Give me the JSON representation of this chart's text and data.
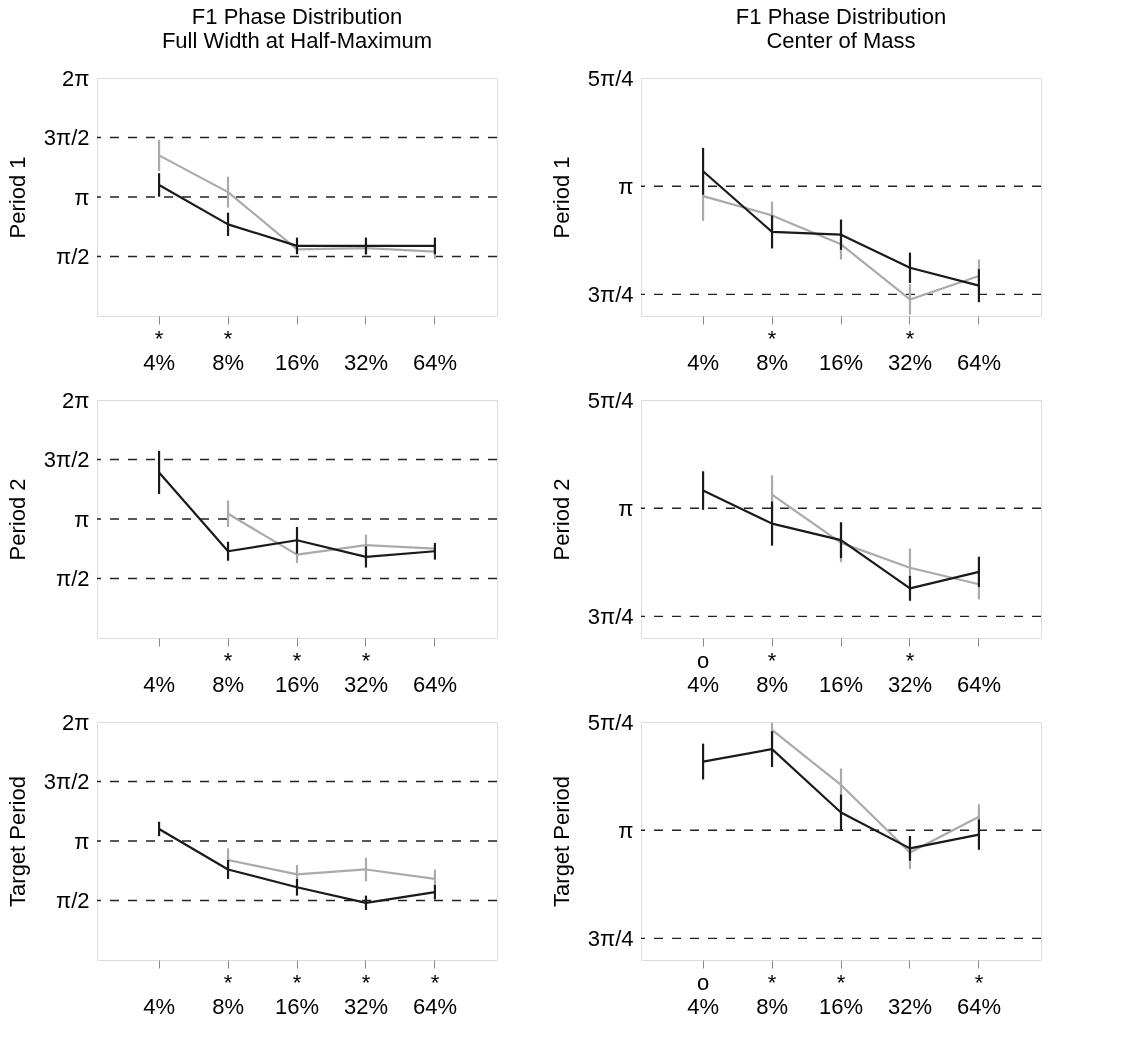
{
  "chart_data": [
    {
      "type": "line",
      "title": "F1 Phase Distribution\nFull Width at Half-Maximum",
      "ylabel": "Period 1",
      "categories": [
        "*\n4%",
        "*\n8%",
        "16%",
        "32%",
        "64%"
      ],
      "series": [
        {
          "color": "#1a1a1a",
          "values": [
            3.46,
            2.42,
            1.85,
            1.85,
            1.85
          ],
          "errors": [
            0.31,
            0.31,
            0.22,
            0.22,
            0.22
          ]
        },
        {
          "color": "#aaaaaa",
          "values": [
            4.24,
            3.27,
            1.76,
            1.79,
            1.7
          ],
          "errors": [
            0.41,
            0.41,
            0.09,
            0.19,
            0.19
          ]
        }
      ],
      "ylim": [
        0,
        6.2832
      ],
      "yticks": [
        {
          "value": 1.5708,
          "label": "π/2"
        },
        {
          "value": 3.1416,
          "label": "π"
        },
        {
          "value": 4.7124,
          "label": "3π/2"
        },
        {
          "value": 6.2832,
          "label": "2π"
        }
      ],
      "ref_lines": [
        {
          "axis": "y",
          "value": 1.5708,
          "line_style": "dashed"
        },
        {
          "axis": "y",
          "value": 3.1416,
          "line_style": "dashed"
        },
        {
          "axis": "y",
          "value": 4.7124,
          "line_style": "dashed"
        }
      ]
    },
    {
      "type": "line",
      "title": "F1 Phase Distribution\nCenter of Mass",
      "ylabel": "Period 1",
      "categories": [
        "4%",
        "*\n8%",
        "16%",
        "*\n32%",
        "64%"
      ],
      "series": [
        {
          "color": "#1a1a1a",
          "values": [
            3.25,
            2.81,
            2.79,
            2.55,
            2.42
          ],
          "errors": [
            0.17,
            0.12,
            0.11,
            0.11,
            0.12
          ]
        },
        {
          "color": "#aaaaaa",
          "values": [
            3.07,
            2.93,
            2.72,
            2.32,
            2.49
          ],
          "errors": [
            0.18,
            0.1,
            0.11,
            0.11,
            0.12
          ]
        }
      ],
      "ylim": [
        2.2,
        3.927
      ],
      "yticks": [
        {
          "value": 2.3562,
          "label": "3π/4"
        },
        {
          "value": 3.1416,
          "label": "π"
        },
        {
          "value": 3.927,
          "label": "5π/4"
        }
      ],
      "ref_lines": [
        {
          "axis": "y",
          "value": 2.3562,
          "line_style": "dashed"
        },
        {
          "axis": "y",
          "value": 3.1416,
          "line_style": "dashed"
        }
      ]
    },
    {
      "type": "line",
      "ylabel": "Period 2",
      "categories": [
        "4%",
        "*\n8%",
        "*\n16%",
        "*\n32%",
        "64%"
      ],
      "series": [
        {
          "color": "#1a1a1a",
          "values": [
            4.37,
            2.29,
            2.58,
            2.14,
            2.29
          ],
          "errors": [
            0.57,
            0.25,
            0.35,
            0.28,
            0.22
          ]
        },
        {
          "color": "#aaaaaa",
          "values": [
            null,
            3.28,
            2.2,
            2.45,
            2.36
          ],
          "errors": [
            null,
            0.35,
            0.22,
            0.28,
            0.09
          ]
        }
      ],
      "ylim": [
        0,
        6.2832
      ],
      "yticks": [
        {
          "value": 1.5708,
          "label": "π/2"
        },
        {
          "value": 3.1416,
          "label": "π"
        },
        {
          "value": 4.7124,
          "label": "3π/2"
        },
        {
          "value": 6.2832,
          "label": "2π"
        }
      ],
      "ref_lines": [
        {
          "axis": "y",
          "value": 1.5708,
          "line_style": "dashed"
        },
        {
          "axis": "y",
          "value": 3.1416,
          "line_style": "dashed"
        },
        {
          "axis": "y",
          "value": 4.7124,
          "line_style": "dashed"
        }
      ]
    },
    {
      "type": "line",
      "ylabel": "Period 2",
      "categories": [
        "o\n4%",
        "*\n8%",
        "16%",
        "*\n32%",
        "64%"
      ],
      "series": [
        {
          "color": "#1a1a1a",
          "values": [
            3.27,
            3.03,
            2.91,
            2.56,
            2.68
          ],
          "errors": [
            0.14,
            0.16,
            0.13,
            0.09,
            0.11
          ]
        },
        {
          "color": "#aaaaaa",
          "values": [
            null,
            3.24,
            2.89,
            2.71,
            2.59
          ],
          "errors": [
            null,
            0.14,
            0.14,
            0.14,
            0.11
          ]
        }
      ],
      "ylim": [
        2.2,
        3.927
      ],
      "yticks": [
        {
          "value": 2.3562,
          "label": "3π/4"
        },
        {
          "value": 3.1416,
          "label": "π"
        },
        {
          "value": 3.927,
          "label": "5π/4"
        }
      ],
      "ref_lines": [
        {
          "axis": "y",
          "value": 2.3562,
          "line_style": "dashed"
        },
        {
          "axis": "y",
          "value": 3.1416,
          "line_style": "dashed"
        }
      ]
    },
    {
      "type": "line",
      "ylabel": "Target Period",
      "categories": [
        "4%",
        "*\n8%",
        "*\n16%",
        "*\n32%",
        "*\n64%"
      ],
      "series": [
        {
          "color": "#1a1a1a",
          "values": [
            3.46,
            2.39,
            1.92,
            1.51,
            1.79
          ],
          "errors": [
            0.19,
            0.25,
            0.22,
            0.19,
            0.19
          ]
        },
        {
          "color": "#aaaaaa",
          "values": [
            null,
            2.64,
            2.26,
            2.39,
            2.14
          ],
          "errors": [
            null,
            0.31,
            0.25,
            0.31,
            0.25
          ]
        }
      ],
      "ylim": [
        0,
        6.2832
      ],
      "yticks": [
        {
          "value": 1.5708,
          "label": "π/2"
        },
        {
          "value": 3.1416,
          "label": "π"
        },
        {
          "value": 4.7124,
          "label": "3π/2"
        },
        {
          "value": 6.2832,
          "label": "2π"
        }
      ],
      "ref_lines": [
        {
          "axis": "y",
          "value": 1.5708,
          "line_style": "dashed"
        },
        {
          "axis": "y",
          "value": 3.1416,
          "line_style": "dashed"
        },
        {
          "axis": "y",
          "value": 4.7124,
          "line_style": "dashed"
        }
      ]
    },
    {
      "type": "line",
      "ylabel": "Target Period",
      "categories": [
        "o\n4%",
        "*\n8%",
        "*\n16%",
        "32%",
        "*\n64%"
      ],
      "series": [
        {
          "color": "#1a1a1a",
          "values": [
            3.64,
            3.73,
            3.27,
            3.01,
            3.11
          ],
          "errors": [
            0.13,
            0.13,
            0.13,
            0.09,
            0.11
          ]
        },
        {
          "color": "#aaaaaa",
          "values": [
            null,
            3.87,
            3.47,
            2.98,
            3.24
          ],
          "errors": [
            null,
            [
              3.77,
              3.92
            ],
            0.12,
            0.12,
            0.09
          ]
        }
      ],
      "ylim": [
        2.2,
        3.927
      ],
      "yticks": [
        {
          "value": 2.3562,
          "label": "3π/4"
        },
        {
          "value": 3.1416,
          "label": "π"
        },
        {
          "value": 3.927,
          "label": "5π/4"
        }
      ],
      "ref_lines": [
        {
          "axis": "y",
          "value": 2.3562,
          "line_style": "dashed"
        },
        {
          "axis": "y",
          "value": 3.1416,
          "line_style": "dashed"
        }
      ]
    }
  ]
}
